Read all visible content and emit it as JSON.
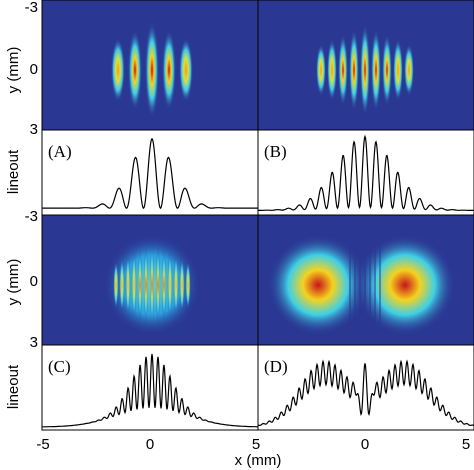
{
  "panels": [
    {
      "label": "(A)"
    },
    {
      "label": "(B)"
    },
    {
      "label": "(C)"
    },
    {
      "label": "(D)"
    }
  ],
  "y_axis": {
    "image_label": "y (mm)",
    "lineout_label": "lineout",
    "ticks": [
      "-3",
      "0",
      "3"
    ]
  },
  "x_axis": {
    "label": "x (mm)",
    "ticks": [
      "-5",
      "0",
      "5"
    ]
  }
}
